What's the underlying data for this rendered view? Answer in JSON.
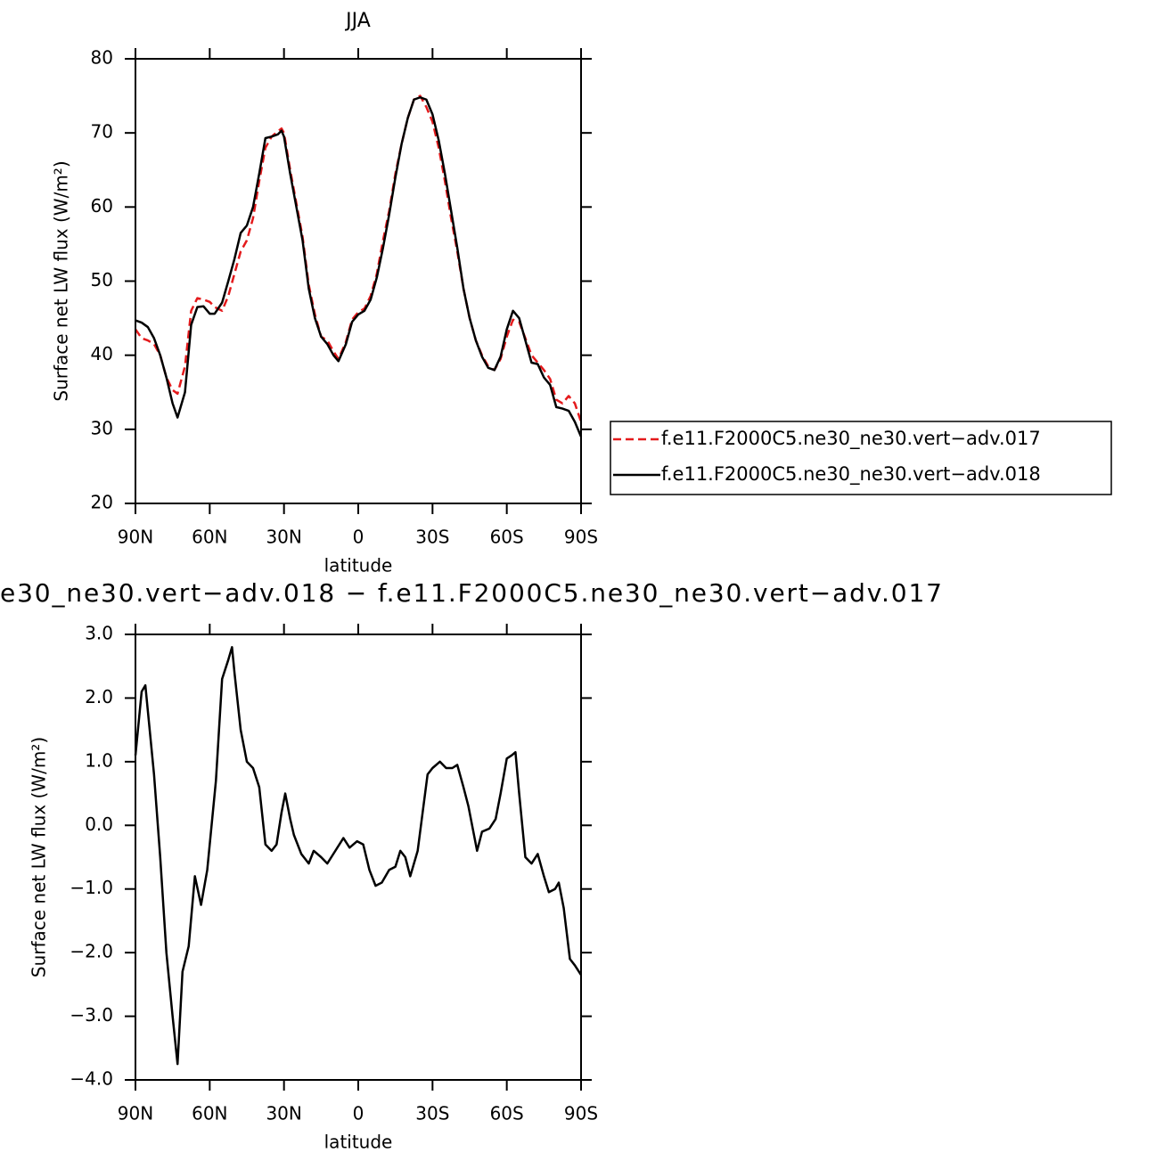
{
  "chart_data": [
    {
      "type": "line",
      "title": "JJA",
      "xlabel": "latitude",
      "ylabel": "Surface net LW flux (W/m²)",
      "x": [
        90,
        87.5,
        85,
        82.5,
        80,
        77.5,
        75,
        73,
        70,
        67.5,
        65,
        62.5,
        60,
        58,
        55,
        52.5,
        50,
        47.5,
        45,
        42.5,
        40,
        37.5,
        35,
        32.5,
        31,
        30,
        27.5,
        25,
        22.5,
        20,
        17.5,
        15,
        12.5,
        10,
        8,
        5,
        2.5,
        0,
        -2.5,
        -5,
        -7.5,
        -10,
        -12.5,
        -15,
        -17.5,
        -20,
        -22.5,
        -25,
        -27.5,
        -30,
        -32.5,
        -35,
        -37.5,
        -40,
        -42.5,
        -45,
        -47.5,
        -50,
        -52.5,
        -55,
        -57.5,
        -60,
        -62.5,
        -65,
        -67.5,
        -70,
        -72.5,
        -75,
        -77.5,
        -80,
        -82.5,
        -85,
        -87.5,
        -90
      ],
      "series": [
        {
          "name": "f.e11.F2000C5.ne30_ne30.vert−adv.017",
          "color": "#e41a1c",
          "line_style": "dashed",
          "values": [
            43.5,
            42.3,
            42,
            41.5,
            40,
            37,
            35.3,
            34.8,
            38.5,
            46,
            47.7,
            47.5,
            47.2,
            46.5,
            46,
            48,
            51,
            54,
            55.5,
            58.5,
            63.5,
            68,
            69.5,
            70.2,
            70.6,
            70,
            65,
            60.5,
            56,
            49.5,
            45.5,
            42.5,
            42,
            40.5,
            39.5,
            41.8,
            44.8,
            45.8,
            46.3,
            48,
            51,
            55.5,
            59.5,
            64.5,
            68.5,
            72,
            74.5,
            75,
            73.5,
            71.5,
            68,
            63.5,
            58.5,
            54,
            49,
            45,
            42,
            40,
            38.5,
            38,
            39.5,
            42.5,
            44.8,
            44.5,
            42.3,
            40,
            39,
            38,
            36.8,
            34,
            33.5,
            34.5,
            33.5,
            31
          ]
        },
        {
          "name": "f.e11.F2000C5.ne30_ne30.vert−adv.018",
          "color": "#000000",
          "line_style": "solid",
          "values": [
            44.7,
            44.4,
            43.8,
            42.3,
            40,
            37,
            33.5,
            31.6,
            35,
            44.1,
            46.5,
            46.6,
            45.6,
            45.6,
            47.1,
            50,
            53,
            56.5,
            57.5,
            60,
            64.5,
            69.3,
            69.5,
            69.8,
            70.3,
            69.5,
            64.5,
            60,
            55.5,
            49,
            45,
            42.5,
            41.5,
            40,
            39.2,
            41.5,
            44.5,
            45.5,
            46,
            47.5,
            50.5,
            54.5,
            59,
            64,
            68.5,
            72,
            74.5,
            74.8,
            74.5,
            72.5,
            69,
            64.5,
            59.5,
            54.5,
            49,
            45,
            42,
            39.8,
            38.3,
            38,
            39.8,
            43.5,
            46,
            45,
            42,
            39,
            38.8,
            37,
            36,
            33,
            32.8,
            32.5,
            31,
            29
          ]
        }
      ],
      "xlim": [
        90,
        -90
      ],
      "xticks": [
        {
          "value": 90,
          "label": "90N"
        },
        {
          "value": 60,
          "label": "60N"
        },
        {
          "value": 30,
          "label": "30N"
        },
        0,
        {
          "value": -30,
          "label": "30S"
        },
        {
          "value": -60,
          "label": "60S"
        },
        {
          "value": -90,
          "label": "90S"
        }
      ],
      "ylim": [
        20,
        80
      ],
      "yticks": [
        20,
        30,
        40,
        50,
        60,
        70,
        80
      ],
      "legend": "right"
    },
    {
      "type": "line",
      "title": "e30_ne30.vert−adv.018 − f.e11.F2000C5.ne30_ne30.vert−adv.017",
      "xlabel": "latitude",
      "ylabel": "Surface net LW flux (W/m²)",
      "x": [
        90,
        87.5,
        86,
        85,
        82.5,
        80,
        77.5,
        75,
        73,
        71,
        68.5,
        66,
        63.5,
        61,
        57.5,
        55,
        52.5,
        51,
        50,
        47.5,
        45,
        42.5,
        40,
        37.5,
        35,
        33,
        31,
        29.5,
        27.5,
        26,
        23,
        20,
        18,
        15,
        12.5,
        6,
        3.5,
        0.5,
        -2,
        -4.5,
        -7,
        -9.5,
        -12.5,
        -15,
        -17,
        -19,
        -21,
        -24,
        -26,
        -28,
        -30,
        -33,
        -35.5,
        -38,
        -40,
        -42.5,
        -44.5,
        -48,
        -50,
        -53,
        -55.5,
        -57.5,
        -60,
        -62,
        -63.5,
        -65,
        -67.5,
        -70,
        -72.5,
        -75,
        -77,
        -79.5,
        -81,
        -83,
        -85.5,
        -87.5,
        -90
      ],
      "values": [
        1.1,
        2.1,
        2.2,
        1.8,
        0.8,
        -0.5,
        -2,
        -3,
        -3.75,
        -2.3,
        -1.9,
        -0.8,
        -1.25,
        -0.7,
        0.7,
        2.3,
        2.6,
        2.8,
        2.4,
        1.5,
        1,
        0.9,
        0.6,
        -0.3,
        -0.4,
        -0.3,
        0.2,
        0.5,
        0.1,
        -0.15,
        -0.45,
        -0.6,
        -0.4,
        -0.5,
        -0.6,
        -0.2,
        -0.35,
        -0.25,
        -0.3,
        -0.7,
        -0.95,
        -0.9,
        -0.7,
        -0.65,
        -0.4,
        -0.5,
        -0.8,
        -0.4,
        0.2,
        0.8,
        0.9,
        1,
        0.9,
        0.9,
        0.95,
        0.6,
        0.3,
        -0.4,
        -0.1,
        -0.05,
        0.1,
        0.5,
        1.05,
        1.1,
        1.15,
        0.5,
        -0.5,
        -0.6,
        -0.45,
        -0.8,
        -1.05,
        -1,
        -0.9,
        -1.3,
        -2.1,
        -2.2,
        -2.35
      ],
      "color": "#000000",
      "xlim": [
        90,
        -90
      ],
      "xticks": [
        {
          "value": 90,
          "label": "90N"
        },
        {
          "value": 60,
          "label": "60N"
        },
        {
          "value": 30,
          "label": "30N"
        },
        0,
        {
          "value": -30,
          "label": "30S"
        },
        {
          "value": -60,
          "label": "60S"
        },
        {
          "value": -90,
          "label": "90S"
        }
      ],
      "ylim": [
        -4,
        3
      ],
      "yticks": [
        {
          "value": -4,
          "label": "−4.0"
        },
        {
          "value": -3,
          "label": "−3.0"
        },
        {
          "value": -2,
          "label": "−2.0"
        },
        {
          "value": -1,
          "label": "−1.0"
        },
        {
          "value": 0,
          "label": "0.0"
        },
        {
          "value": 1,
          "label": "1.0"
        },
        {
          "value": 2,
          "label": "2.0"
        },
        {
          "value": 3,
          "label": "3.0"
        }
      ]
    }
  ]
}
